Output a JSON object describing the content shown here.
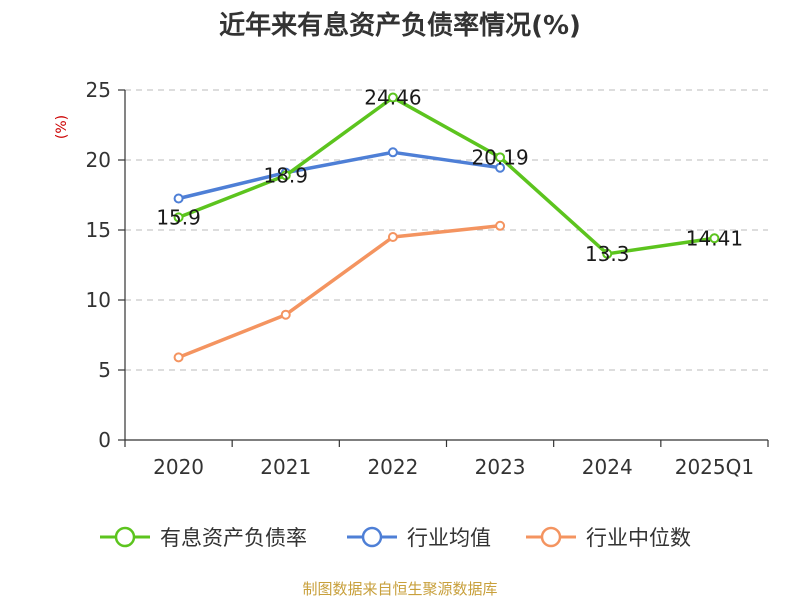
{
  "chart_data": {
    "type": "line",
    "title": "近年来有息资产负债率情况(%)",
    "y_unit": "(%)",
    "categories": [
      "2020",
      "2021",
      "2022",
      "2023",
      "2024",
      "2025Q1"
    ],
    "ylim": [
      0,
      25
    ],
    "yticks": [
      0,
      5,
      10,
      15,
      20,
      25
    ],
    "grid": true,
    "legend_position": "bottom",
    "series": [
      {
        "name": "有息资产负债率",
        "color": "#5cc41e",
        "values": [
          15.9,
          18.9,
          24.46,
          20.19,
          13.3,
          14.41
        ],
        "show_labels": true
      },
      {
        "name": "行业均值",
        "color": "#4e7fd6",
        "values": [
          17.25,
          19.1,
          20.55,
          19.45,
          null,
          null
        ],
        "show_labels": false
      },
      {
        "name": "行业中位数",
        "color": "#f49460",
        "values": [
          5.9,
          8.95,
          14.5,
          15.3,
          null,
          null
        ],
        "show_labels": false
      }
    ],
    "data_labels": [
      "15.9",
      "18.9",
      "24.46",
      "20.19",
      "13.3",
      "14.41"
    ]
  },
  "source": "制图数据来自恒生聚源数据库"
}
